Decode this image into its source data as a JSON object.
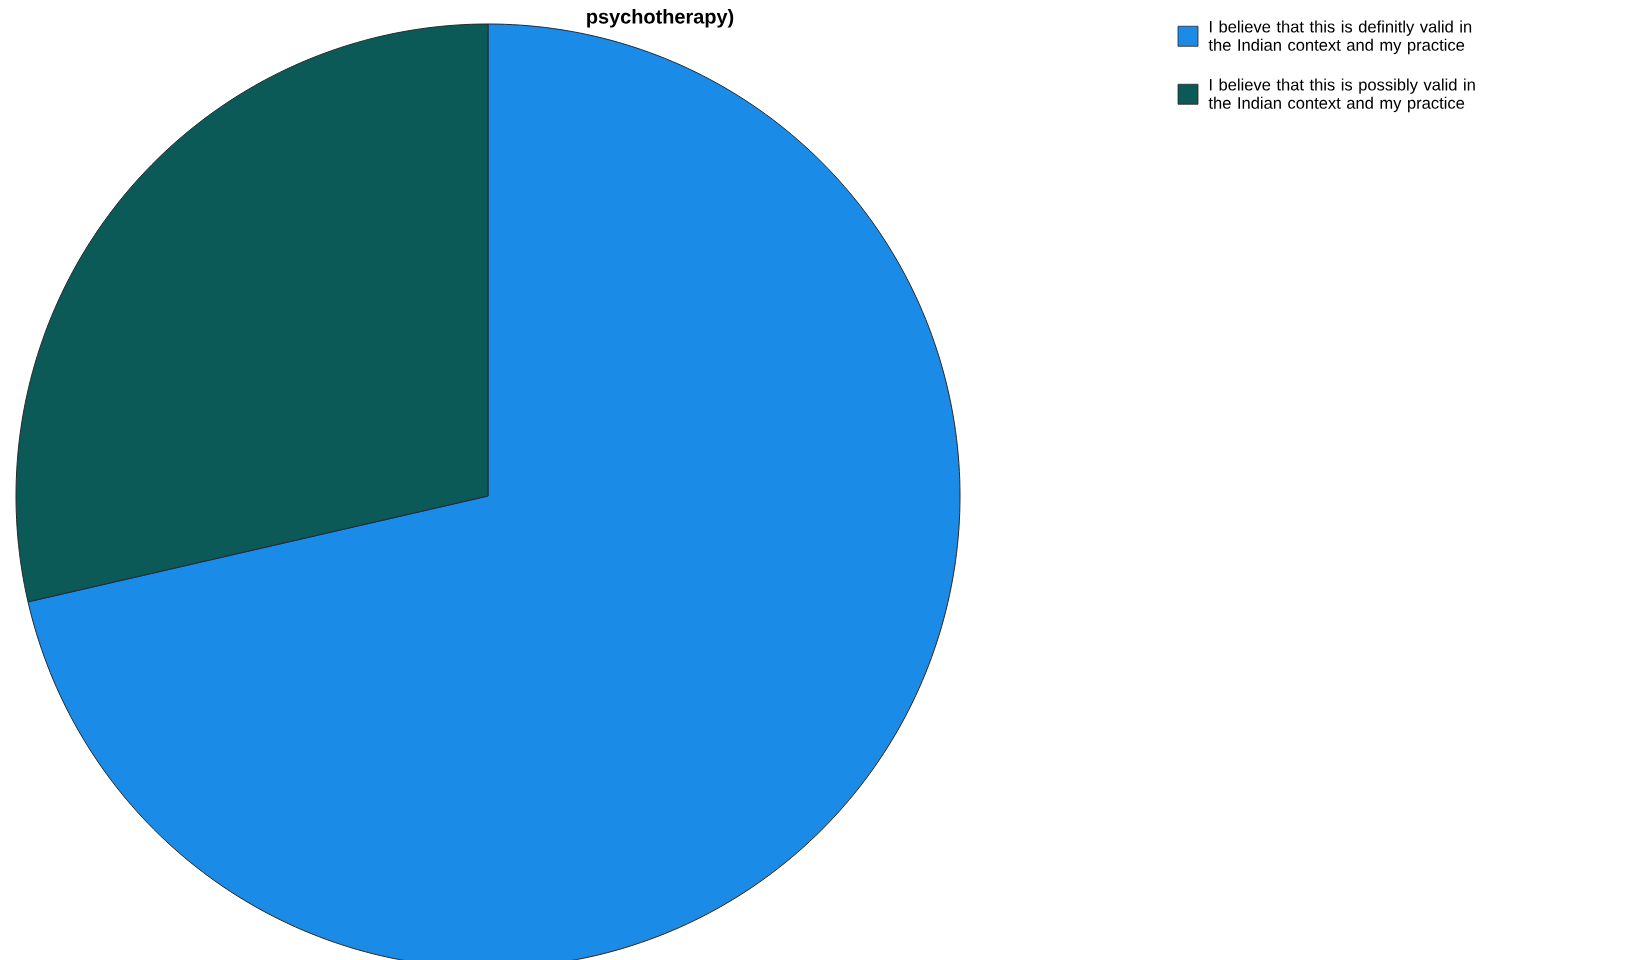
{
  "chart_data": {
    "type": "pie",
    "title": "psychotherapy)",
    "categories": [
      "I believe that this is definitly valid in the Indian context and my practice",
      "I believe that this is possibly valid in the Indian context and my practice"
    ],
    "values": [
      71.4,
      28.6
    ],
    "colors": [
      "#1a8be6",
      "#0b5a57"
    ],
    "legend": "top right"
  }
}
